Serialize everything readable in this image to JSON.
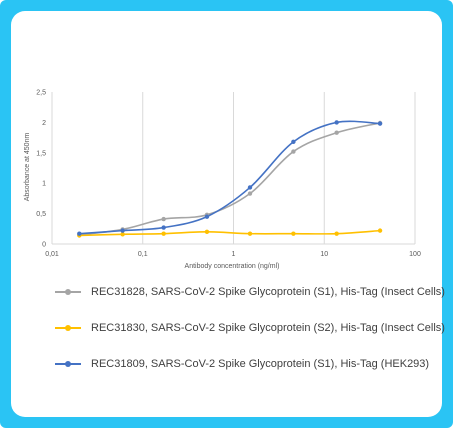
{
  "chart_data": {
    "type": "line",
    "x_scale": "log",
    "xlabel": "Antibody concentration (ng/ml)",
    "ylabel": "Absorbance at 450nm",
    "xlim": [
      0.01,
      100
    ],
    "ylim": [
      0,
      2.5
    ],
    "x_ticks": [
      "0,01",
      "0,1",
      "1",
      "10",
      "100"
    ],
    "y_ticks": [
      "0",
      "0,5",
      "1",
      "1,5",
      "2",
      "2,5"
    ],
    "grid": "vertical",
    "legend_position": "bottom",
    "series": [
      {
        "name": "REC31828, SARS-CoV-2 Spike Glycoprotein (S1), His-Tag (Insect Cells)",
        "color": "#a5a5a5",
        "x": [
          0.02,
          0.06,
          0.17,
          0.51,
          1.52,
          4.57,
          13.7,
          41.2
        ],
        "y": [
          0.15,
          0.24,
          0.41,
          0.48,
          0.83,
          1.52,
          1.83,
          1.99
        ]
      },
      {
        "name": "REC31830, SARS-CoV-2 Spike Glycoprotein (S2), His-Tag (Insect Cells)",
        "color": "#ffc000",
        "x": [
          0.02,
          0.06,
          0.17,
          0.51,
          1.52,
          4.57,
          13.7,
          41.2
        ],
        "y": [
          0.14,
          0.16,
          0.17,
          0.2,
          0.17,
          0.17,
          0.17,
          0.22
        ]
      },
      {
        "name": "REC31809, SARS-CoV-2 Spike Glycoprotein (S1), His-Tag (HEK293)",
        "color": "#4472c4",
        "x": [
          0.02,
          0.06,
          0.17,
          0.51,
          1.52,
          4.57,
          13.7,
          41.2
        ],
        "y": [
          0.17,
          0.22,
          0.27,
          0.45,
          0.93,
          1.68,
          2.0,
          1.98
        ]
      }
    ]
  }
}
